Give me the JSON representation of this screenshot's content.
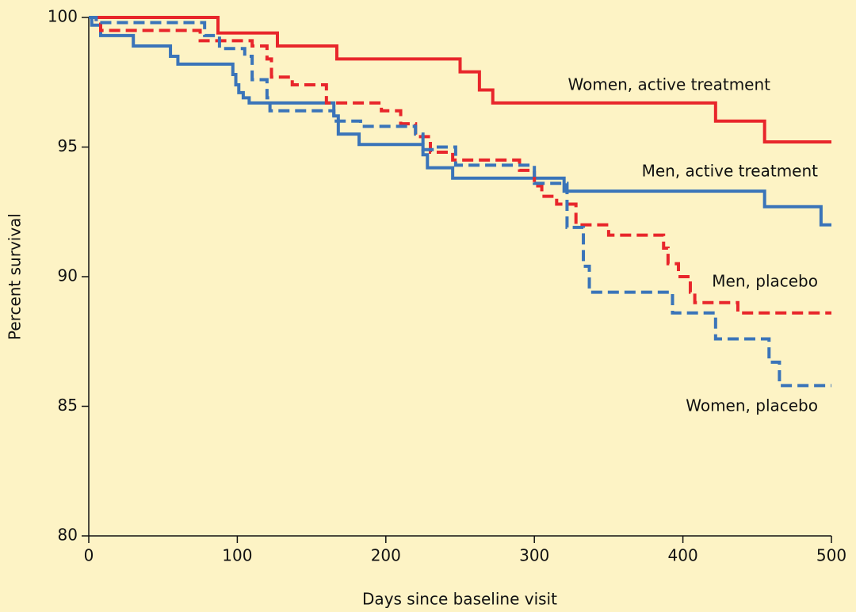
{
  "chart_data": {
    "type": "step-line",
    "xlabel": "Days since baseline visit",
    "ylabel": "Percent survival",
    "xlim": [
      0,
      500
    ],
    "xticks": [
      0,
      100,
      200,
      300,
      400,
      500
    ],
    "ylim": [
      80,
      100
    ],
    "yticks": [
      80,
      85,
      90,
      95,
      100
    ],
    "series": [
      {
        "name": "Women, active treatment",
        "color": "#e8262b",
        "style": "solid",
        "x": [
          0,
          87,
          127,
          167,
          250,
          263,
          272,
          422,
          455,
          500
        ],
        "values": [
          100,
          99.4,
          98.9,
          98.4,
          97.9,
          97.2,
          96.7,
          96.0,
          95.2,
          95.2
        ]
      },
      {
        "name": "Men, active treatment",
        "color": "#3a74b9",
        "style": "solid",
        "x": [
          0,
          2,
          8,
          30,
          55,
          60,
          97,
          99,
          101,
          104,
          108,
          165,
          168,
          182,
          225,
          228,
          245,
          320,
          455,
          493,
          500
        ],
        "values": [
          100,
          99.7,
          99.3,
          98.9,
          98.5,
          98.2,
          97.8,
          97.4,
          97.1,
          96.9,
          96.7,
          96.2,
          95.5,
          95.1,
          94.7,
          94.2,
          93.8,
          93.3,
          92.7,
          92.0,
          92.0
        ]
      },
      {
        "name": "Men, placebo",
        "color": "#e8262b",
        "style": "dashed",
        "x": [
          0,
          5,
          8,
          75,
          110,
          120,
          123,
          137,
          160,
          197,
          210,
          220,
          230,
          245,
          290,
          300,
          305,
          315,
          328,
          350,
          387,
          390,
          397,
          405,
          408,
          437,
          500
        ],
        "values": [
          100,
          99.8,
          99.5,
          99.1,
          98.9,
          98.4,
          97.7,
          97.4,
          96.7,
          96.4,
          95.9,
          95.4,
          94.8,
          94.5,
          94.1,
          93.5,
          93.1,
          92.8,
          92.0,
          91.6,
          91.1,
          90.5,
          90.0,
          89.4,
          89.0,
          88.6,
          88.6
        ]
      },
      {
        "name": "Women, placebo",
        "color": "#3a74b9",
        "style": "dashed",
        "x": [
          0,
          5,
          78,
          88,
          105,
          110,
          120,
          122,
          165,
          183,
          220,
          225,
          233,
          247,
          300,
          322,
          333,
          337,
          393,
          422,
          458,
          465,
          500
        ],
        "values": [
          100,
          99.8,
          99.3,
          98.8,
          98.5,
          97.6,
          96.9,
          96.4,
          96.0,
          95.8,
          95.5,
          94.9,
          95.0,
          94.3,
          93.6,
          91.9,
          90.4,
          89.4,
          88.6,
          87.6,
          86.7,
          85.8,
          85.8
        ]
      }
    ]
  }
}
